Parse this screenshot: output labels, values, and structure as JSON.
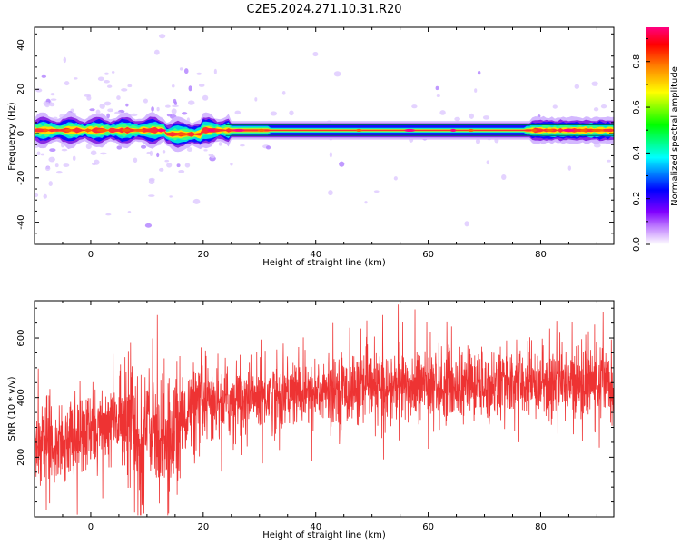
{
  "title": "C2E5.2024.271.10.31.R20",
  "chart_data": [
    {
      "type": "heatmap",
      "title": "C2E5.2024.271.10.31.R20",
      "xlabel": "Height of straight line (km)",
      "ylabel": "Frequency (Hz)",
      "xlim": [
        -10,
        93
      ],
      "ylim": [
        -50,
        48
      ],
      "xticks": [
        0,
        20,
        40,
        60,
        80
      ],
      "yticks": [
        -40,
        -20,
        0,
        20,
        40
      ],
      "grid": false,
      "band": {
        "center_freq_hz": 1.5,
        "halfwidth_hz": 3,
        "note_values": "normalized spectral amplitude, max ~0.9 at band center"
      },
      "colorbar": {
        "label": "Normalized spectral amplitude",
        "range": [
          0.0,
          0.95
        ],
        "ticks": [
          0.0,
          0.2,
          0.4,
          0.6,
          0.8
        ],
        "colors": [
          "#ffffff",
          "#8000ff",
          "#0000ff",
          "#00ffff",
          "#00ff00",
          "#ffff00",
          "#ff8000",
          "#ff0000",
          "#ff0080"
        ]
      }
    },
    {
      "type": "line",
      "xlabel": "Height of straight line (km)",
      "ylabel": "SNR (10 * v/v)",
      "xlim": [
        -10,
        93
      ],
      "ylim": [
        0,
        725
      ],
      "xticks": [
        0,
        20,
        40,
        60,
        80
      ],
      "yticks": [
        200,
        400,
        600
      ],
      "color": "#ee3333",
      "grid": false,
      "trend": {
        "x": [
          -10,
          -5,
          0,
          5,
          7,
          8,
          9,
          10,
          12,
          14,
          15,
          18,
          20,
          30,
          40,
          50,
          60,
          70,
          80,
          90,
          93
        ],
        "y": [
          250,
          260,
          280,
          320,
          380,
          250,
          150,
          330,
          300,
          220,
          320,
          360,
          370,
          405,
          420,
          430,
          440,
          440,
          450,
          450,
          460
        ]
      }
    }
  ]
}
